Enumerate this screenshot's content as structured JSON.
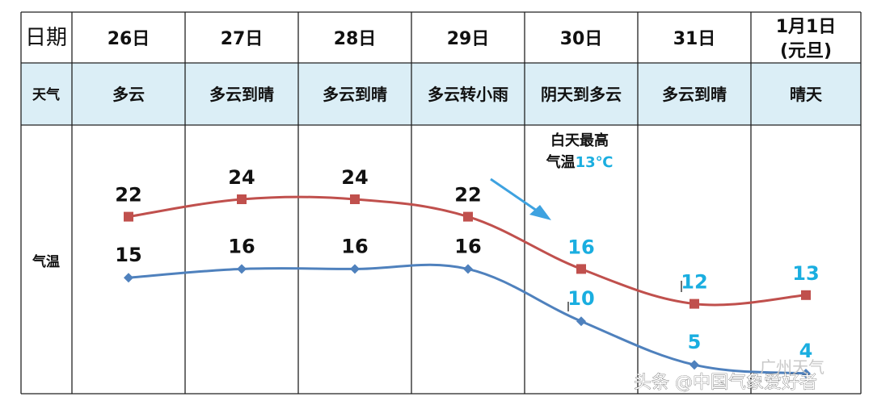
{
  "table": {
    "corner_label": "日期",
    "weather_label": "天气",
    "temp_label": "气温",
    "dates": [
      "26日",
      "27日",
      "28日",
      "29日",
      "30日",
      "31日",
      [
        "1月1日",
        "(元旦)"
      ]
    ],
    "weather": [
      "多云",
      "多云到晴",
      "多云到晴",
      "多云转小雨",
      "阴天到多云",
      "多云到晴",
      "晴天"
    ]
  },
  "annotation": {
    "line1": "白天最高",
    "line2_prefix": "气温",
    "line2_value": "13℃"
  },
  "watermark": "头条 @中国气象爱好者",
  "faint_logo": "广州天气",
  "colors": {
    "header_bg": "#dbeef6",
    "grid": "#222222",
    "high_line": "#c0504d",
    "low_line": "#4f81bd",
    "label_dark": "#111111",
    "label_highlight": "#1aaee0"
  },
  "chart_data": {
    "type": "line",
    "categories": [
      "26日",
      "27日",
      "28日",
      "29日",
      "30日",
      "31日",
      "1月1日(元旦)"
    ],
    "series": [
      {
        "values": [
          22,
          24,
          24,
          22,
          16,
          12,
          13
        ]
      },
      {
        "values": [
          15,
          16,
          16,
          16,
          10,
          5,
          4
        ]
      }
    ],
    "label_highlight_from_index": 4,
    "xlabel": "",
    "ylabel": ""
  }
}
